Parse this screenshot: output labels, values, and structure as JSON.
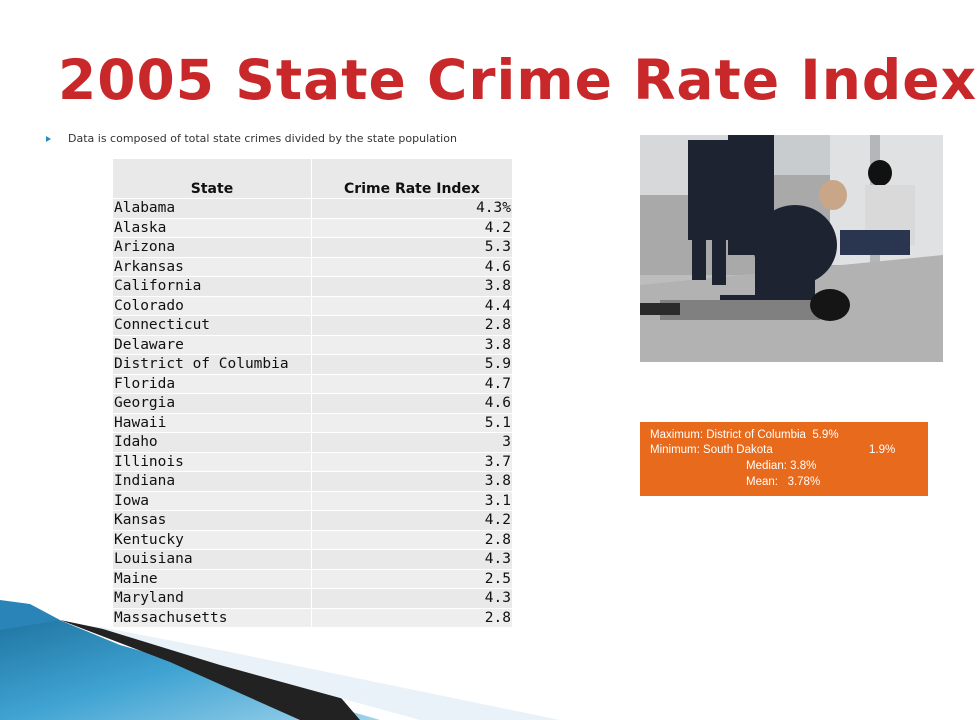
{
  "slide": {
    "title": "2005 State Crime Rate Index",
    "bullet": "Data is composed of total state crimes divided by the state population"
  },
  "table": {
    "headers": [
      "State",
      "Crime Rate Index"
    ],
    "rows": [
      {
        "state": "Alabama",
        "rate": "4.3%"
      },
      {
        "state": "Alaska",
        "rate": "4.2"
      },
      {
        "state": "Arizona",
        "rate": "5.3"
      },
      {
        "state": "Arkansas",
        "rate": "4.6"
      },
      {
        "state": "California",
        "rate": "3.8"
      },
      {
        "state": "Colorado",
        "rate": "4.4"
      },
      {
        "state": "Connecticut",
        "rate": "2.8"
      },
      {
        "state": "Delaware",
        "rate": "3.8"
      },
      {
        "state": "District of Columbia",
        "rate": "5.9"
      },
      {
        "state": "Florida",
        "rate": "4.7"
      },
      {
        "state": "Georgia",
        "rate": "4.6"
      },
      {
        "state": "Hawaii",
        "rate": "5.1"
      },
      {
        "state": "Idaho",
        "rate": "3"
      },
      {
        "state": "Illinois",
        "rate": "3.7"
      },
      {
        "state": "Indiana",
        "rate": "3.8"
      },
      {
        "state": "Iowa",
        "rate": "3.1"
      },
      {
        "state": "Kansas",
        "rate": "4.2"
      },
      {
        "state": "Kentucky",
        "rate": "2.8"
      },
      {
        "state": "Louisiana",
        "rate": "4.3"
      },
      {
        "state": "Maine",
        "rate": "2.5"
      },
      {
        "state": "Maryland",
        "rate": "4.3"
      },
      {
        "state": "Massachusetts",
        "rate": "2.8"
      }
    ]
  },
  "stats": {
    "max_label": "Maximum:",
    "max_state": "District of Columbia",
    "max_value": "5.9%",
    "min_label": "Minimum:",
    "min_state": "South Dakota",
    "min_value": "1.9%",
    "median": "Median: 3.8%",
    "mean_label": "Mean:",
    "mean_value": "3.78%"
  },
  "colors": {
    "title": "#c8282a",
    "stats_box": "#e86a1c",
    "bullet_arrow": "#2a8bc0",
    "table_fill": "#e9e9e9"
  },
  "photo": {
    "icon": "police-arrest-photo"
  }
}
